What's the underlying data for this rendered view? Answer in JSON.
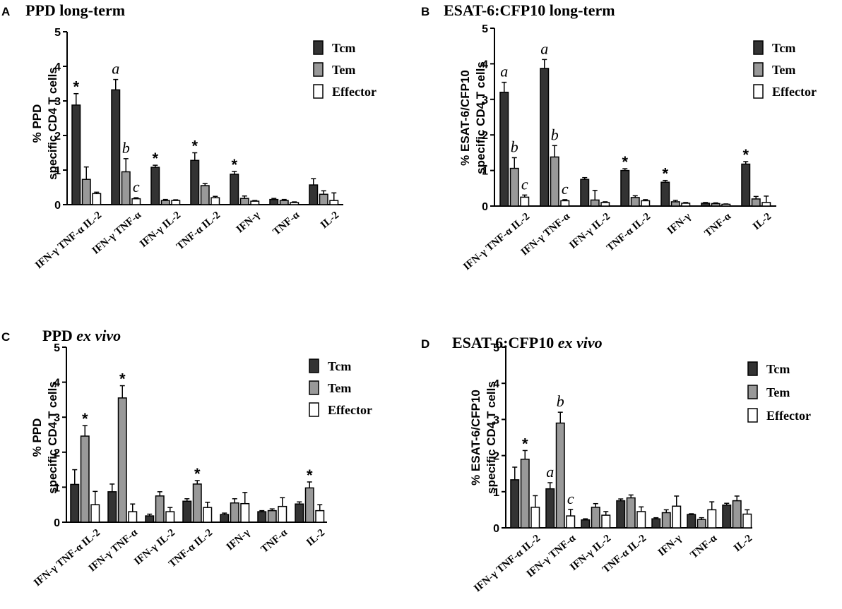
{
  "figure": {
    "colors": {
      "Tcm": "#333333",
      "Tem": "#999999",
      "Effector": "#ffffff",
      "stroke": "#000000"
    }
  },
  "chart_data": [
    {
      "type": "bar",
      "panel": "A",
      "title": "PPD long-term",
      "title_parts": [
        {
          "text": "PPD long-term",
          "italic": false
        }
      ],
      "ylabel": [
        "% PPD",
        "specific CD4 T cells"
      ],
      "xlabel": "",
      "ylim": [
        0,
        5
      ],
      "yticks": [
        "0",
        "1",
        "2",
        "3",
        "4",
        "5"
      ],
      "categories": [
        "IFN-γ TNF-α IL-2",
        "IFN-γ TNF-α",
        "IFN-γ  IL-2",
        "TNF-α IL-2",
        "IFN-γ",
        "TNF-α",
        "IL-2"
      ],
      "legend": [
        "Tcm",
        "Tem",
        "Effector"
      ],
      "series": [
        {
          "name": "Tcm",
          "values": [
            2.88,
            3.32,
            1.08,
            1.28,
            0.88,
            0.15,
            0.57
          ],
          "errors": [
            0.33,
            0.3,
            0.06,
            0.22,
            0.08,
            0.03,
            0.18
          ]
        },
        {
          "name": "Tem",
          "values": [
            0.73,
            0.95,
            0.12,
            0.55,
            0.18,
            0.12,
            0.3
          ],
          "errors": [
            0.36,
            0.38,
            0.03,
            0.06,
            0.07,
            0.03,
            0.1
          ]
        },
        {
          "name": "Effector",
          "values": [
            0.32,
            0.17,
            0.12,
            0.2,
            0.1,
            0.06,
            0.12
          ],
          "errors": [
            0.04,
            0.03,
            0.02,
            0.04,
            0.02,
            0.02,
            0.22
          ]
        }
      ],
      "annotations": [
        {
          "category": 0,
          "series": 0,
          "text": "*",
          "italic": false
        },
        {
          "category": 1,
          "series": 0,
          "text": "a",
          "italic": true
        },
        {
          "category": 1,
          "series": 1,
          "text": "b",
          "italic": true
        },
        {
          "category": 1,
          "series": 2,
          "text": "c",
          "italic": true
        },
        {
          "category": 2,
          "series": 0,
          "text": "*",
          "italic": false
        },
        {
          "category": 3,
          "series": 0,
          "text": "*",
          "italic": false
        },
        {
          "category": 4,
          "series": 0,
          "text": "*",
          "italic": false
        }
      ]
    },
    {
      "type": "bar",
      "panel": "B",
      "title": "ESAT-6:CFP10 long-term",
      "title_parts": [
        {
          "text": "ESAT-6:CFP10 long-term",
          "italic": false
        }
      ],
      "ylabel": [
        "% ESAT-6/CFP10",
        "specific CD4 T cells"
      ],
      "xlabel": "",
      "ylim": [
        0,
        5
      ],
      "yticks": [
        "0",
        "1",
        "2",
        "3",
        "4",
        "5"
      ],
      "categories": [
        "IFN-γ TNF-α IL-2",
        "IFN-γ TNF-α",
        "IFN-γ  IL-2",
        "TNF-α IL-2",
        "IFN-γ",
        "TNF-α",
        "IL-2"
      ],
      "legend": [
        "Tcm",
        "Tem",
        "Effector"
      ],
      "series": [
        {
          "name": "Tcm",
          "values": [
            3.2,
            3.87,
            0.75,
            1.0,
            0.67,
            0.08,
            1.18
          ],
          "errors": [
            0.28,
            0.25,
            0.05,
            0.05,
            0.05,
            0.02,
            0.07
          ]
        },
        {
          "name": "Tem",
          "values": [
            1.06,
            1.38,
            0.17,
            0.24,
            0.12,
            0.07,
            0.2
          ],
          "errors": [
            0.3,
            0.32,
            0.27,
            0.05,
            0.04,
            0.02,
            0.07
          ]
        },
        {
          "name": "Effector",
          "values": [
            0.25,
            0.15,
            0.1,
            0.15,
            0.08,
            0.05,
            0.1
          ],
          "errors": [
            0.06,
            0.03,
            0.02,
            0.03,
            0.02,
            0.01,
            0.18
          ]
        }
      ],
      "annotations": [
        {
          "category": 0,
          "series": 0,
          "text": "a",
          "italic": true
        },
        {
          "category": 0,
          "series": 1,
          "text": "b",
          "italic": true
        },
        {
          "category": 0,
          "series": 2,
          "text": "c",
          "italic": true
        },
        {
          "category": 1,
          "series": 0,
          "text": "a",
          "italic": true
        },
        {
          "category": 1,
          "series": 1,
          "text": "b",
          "italic": true
        },
        {
          "category": 1,
          "series": 2,
          "text": "c",
          "italic": true
        },
        {
          "category": 3,
          "series": 0,
          "text": "*",
          "italic": false
        },
        {
          "category": 4,
          "series": 0,
          "text": "*",
          "italic": false
        },
        {
          "category": 6,
          "series": 0,
          "text": "*",
          "italic": false
        }
      ]
    },
    {
      "type": "bar",
      "panel": "C",
      "title": "PPD ex vivo",
      "title_parts": [
        {
          "text": "PPD ",
          "italic": false
        },
        {
          "text": "ex vivo",
          "italic": true
        }
      ],
      "ylabel": [
        "% PPD",
        "specific CD4 T cells"
      ],
      "xlabel": "",
      "ylim": [
        0,
        5
      ],
      "yticks": [
        "0",
        "1",
        "2",
        "3",
        "4",
        "5"
      ],
      "categories": [
        "IFN-γ TNF-α IL-2",
        "IFN-γ TNF-α",
        "IFN-γ  IL-2",
        "TNF-α IL-2",
        "IFN-γ",
        "TNF-α",
        "IL-2"
      ],
      "legend": [
        "Tcm",
        "Tem",
        "Effector"
      ],
      "series": [
        {
          "name": "Tcm",
          "values": [
            1.08,
            0.87,
            0.18,
            0.6,
            0.22,
            0.3,
            0.52
          ],
          "errors": [
            0.42,
            0.22,
            0.05,
            0.07,
            0.04,
            0.03,
            0.06
          ]
        },
        {
          "name": "Tem",
          "values": [
            2.46,
            3.55,
            0.75,
            1.09,
            0.55,
            0.33,
            0.98
          ],
          "errors": [
            0.3,
            0.35,
            0.12,
            0.1,
            0.12,
            0.05,
            0.17
          ]
        },
        {
          "name": "Effector",
          "values": [
            0.5,
            0.3,
            0.3,
            0.42,
            0.53,
            0.45,
            0.33
          ],
          "errors": [
            0.38,
            0.22,
            0.12,
            0.15,
            0.32,
            0.25,
            0.17
          ]
        }
      ],
      "annotations": [
        {
          "category": 0,
          "series": 1,
          "text": "*",
          "italic": false
        },
        {
          "category": 1,
          "series": 1,
          "text": "*",
          "italic": false
        },
        {
          "category": 3,
          "series": 1,
          "text": "*",
          "italic": false
        },
        {
          "category": 6,
          "series": 1,
          "text": "*",
          "italic": false
        }
      ]
    },
    {
      "type": "bar",
      "panel": "D",
      "title": "ESAT-6:CFP10 ex vivo",
      "title_parts": [
        {
          "text": "ESAT-6:CFP10 ",
          "italic": false
        },
        {
          "text": "ex vivo",
          "italic": true
        }
      ],
      "ylabel": [
        "% ESAT-6/CFP10",
        "specific CD4 T cells"
      ],
      "xlabel": "",
      "ylim": [
        0,
        5
      ],
      "yticks": [
        "0",
        "1",
        "2",
        "3",
        "4",
        "5"
      ],
      "categories": [
        "IFN-γ TNF-α IL-2",
        "IFN-γ TNF-α",
        "IFN-γ  IL-2",
        "TNF-α IL-2",
        "IFN-γ",
        "TNF-α",
        "IL-2"
      ],
      "legend": [
        "Tcm",
        "Tem",
        "Effector"
      ],
      "series": [
        {
          "name": "Tcm",
          "values": [
            1.33,
            1.08,
            0.22,
            0.75,
            0.25,
            0.37,
            0.63
          ],
          "errors": [
            0.35,
            0.17,
            0.03,
            0.05,
            0.03,
            0.02,
            0.05
          ]
        },
        {
          "name": "Tem",
          "values": [
            1.9,
            2.9,
            0.57,
            0.83,
            0.42,
            0.23,
            0.75
          ],
          "errors": [
            0.24,
            0.3,
            0.1,
            0.08,
            0.08,
            0.05,
            0.13
          ]
        },
        {
          "name": "Effector",
          "values": [
            0.57,
            0.33,
            0.35,
            0.45,
            0.6,
            0.5,
            0.38
          ],
          "errors": [
            0.32,
            0.18,
            0.1,
            0.13,
            0.28,
            0.22,
            0.12
          ]
        }
      ],
      "annotations": [
        {
          "category": 0,
          "series": 1,
          "text": "*",
          "italic": false
        },
        {
          "category": 1,
          "series": 0,
          "text": "a",
          "italic": true
        },
        {
          "category": 1,
          "series": 1,
          "text": "b",
          "italic": true
        },
        {
          "category": 1,
          "series": 2,
          "text": "c",
          "italic": true
        }
      ]
    }
  ]
}
